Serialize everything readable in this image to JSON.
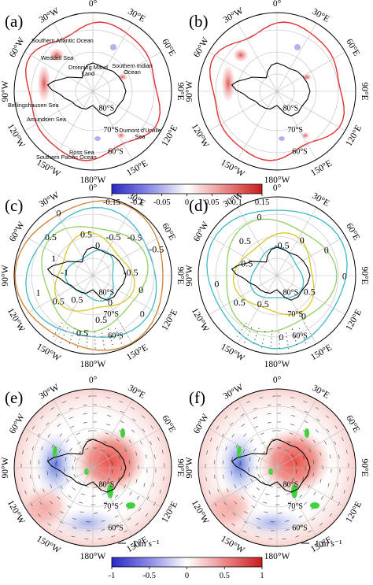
{
  "panels": [
    {
      "id": "a",
      "label": "(a)"
    },
    {
      "id": "b",
      "label": "(b)"
    },
    {
      "id": "c",
      "label": "(c)"
    },
    {
      "id": "d",
      "label": "(d)"
    },
    {
      "id": "e",
      "label": "(e)"
    },
    {
      "id": "f",
      "label": "(f)"
    }
  ],
  "longitude_labels": [
    "0°",
    "30°E",
    "60°E",
    "90°E",
    "120°E",
    "150°E",
    "180°W",
    "150°W",
    "120°W",
    "90°W",
    "60°W",
    "30°W"
  ],
  "latitude_labels": [
    "80°S",
    "70°S",
    "60°S"
  ],
  "regions": [
    "Southern Atlantic Ocean",
    "Weddell Sea",
    "Dronning Maud Land",
    "Southern Indian Ocean",
    "Bellingshausen Sea",
    "Amundsen Sea",
    "Ross Sea",
    "Dumont d'Urville Sea",
    "Southern Pacific Ocean"
  ],
  "colorbar_top": {
    "ticks": [
      "-0.15",
      "-0.1",
      "-0.05",
      "0",
      "0.05",
      "0.1",
      "0.15"
    ],
    "min": -0.15,
    "max": 0.15,
    "colors": {
      "negative": "#2b2bd6",
      "neutral": "#ffffff",
      "positive": "#d62020"
    }
  },
  "colorbar_bottom": {
    "ticks": [
      "-1",
      "-0.5",
      "0",
      "0.5",
      "1"
    ],
    "min": -1,
    "max": 1,
    "colors": {
      "negative": "#2b2bd6",
      "neutral": "#ffffff",
      "positive": "#d62020"
    }
  },
  "contour_labels_c": [
    "0",
    "-0.5",
    "-0.5",
    "-0.5",
    "-0.5",
    "0",
    "0",
    "0",
    "0.5",
    "0.5",
    "0.5",
    "0.5",
    "1",
    "-1",
    "1",
    "0.5",
    "0",
    "0.5"
  ],
  "contour_labels_d": [
    "-0.5",
    "0",
    "0",
    "0",
    "0.5",
    "0",
    "0",
    "0.5",
    "0.5",
    "0",
    "0.5",
    "0.5",
    "0"
  ],
  "wind_scale_label": "1 m s⁻¹",
  "colors": {
    "sea_ice_edge": "#e03030",
    "coast": "#000000",
    "grid": "#bbbbbb",
    "highlight_green": "#3fd23f"
  }
}
